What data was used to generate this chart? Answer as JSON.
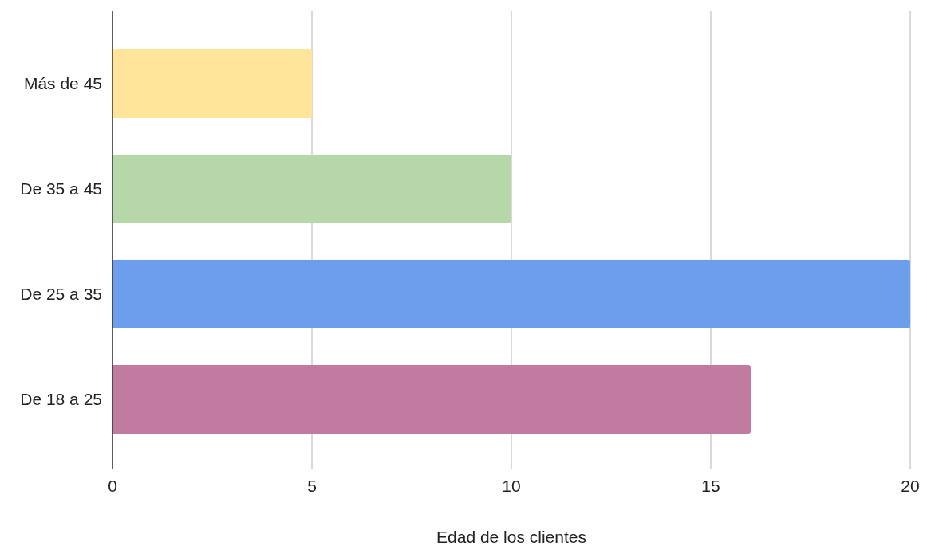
{
  "chart_data": {
    "type": "bar",
    "orientation": "horizontal",
    "categories": [
      "Más de 45",
      "De 35 a 45",
      "De 25 a 35",
      "De 18 a 25"
    ],
    "values": [
      5,
      10,
      20,
      16
    ],
    "colors": [
      "#ffe599",
      "#b6d7a8",
      "#6d9eeb",
      "#c27ba0"
    ],
    "xlim": [
      0,
      20
    ],
    "xticks": [
      0,
      5,
      10,
      15,
      20
    ],
    "grid": "x",
    "xlabel": "Edad de los clientes"
  }
}
